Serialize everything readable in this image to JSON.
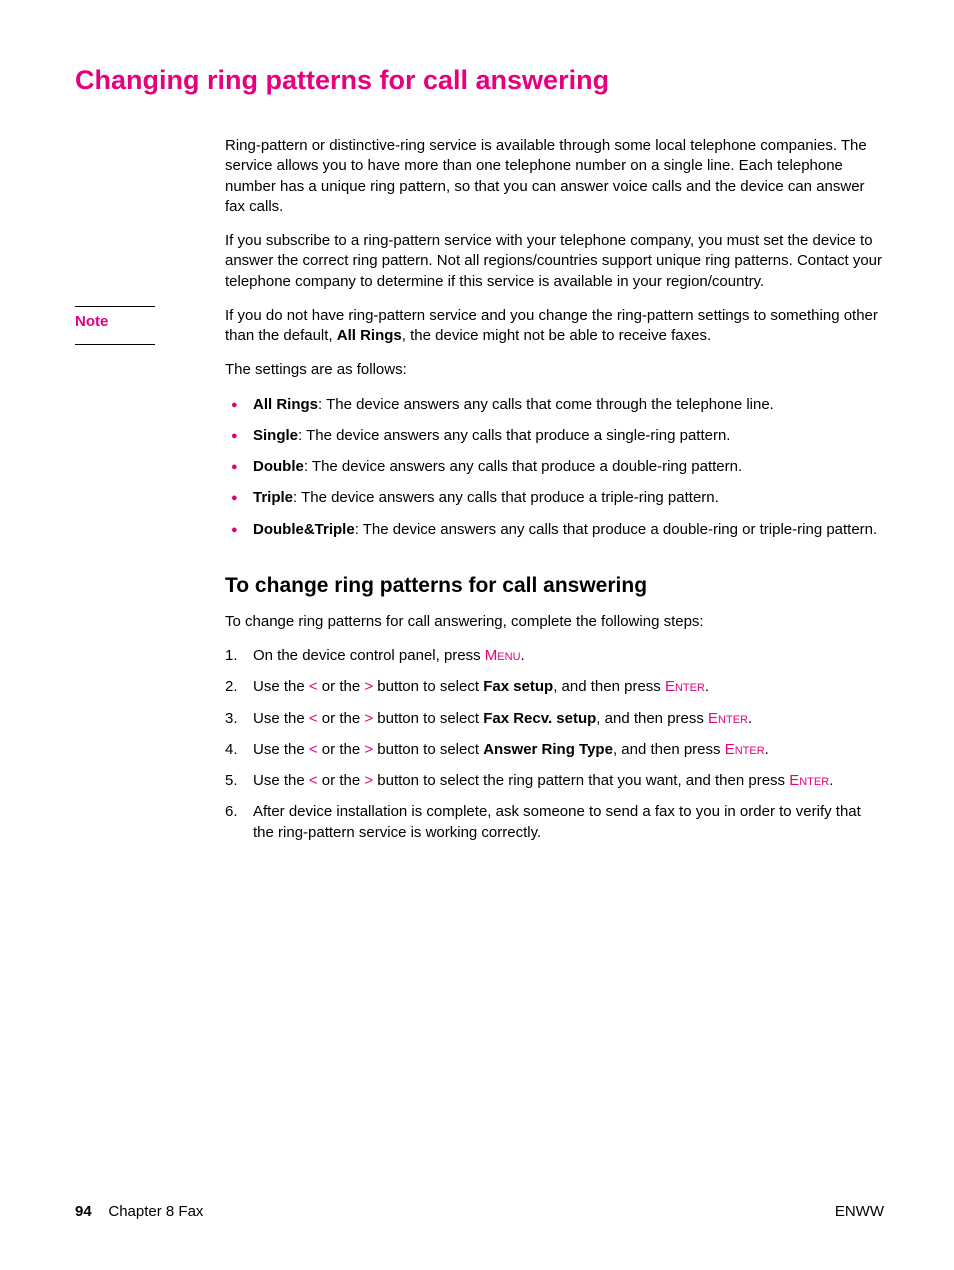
{
  "colors": {
    "accent": "#e6007e",
    "text": "#000000",
    "background": "#ffffff"
  },
  "typography": {
    "body_family": "Arial",
    "body_size_pt": 11,
    "h1_size_pt": 20,
    "h2_size_pt": 16
  },
  "title": "Changing ring patterns for call answering",
  "para1": "Ring-pattern or distinctive-ring service is available through some local telephone companies. The service allows you to have more than one telephone number on a single line. Each telephone number has a unique ring pattern, so that you can answer voice calls and the device can answer fax calls.",
  "para2": "If you subscribe to a ring-pattern service with your telephone company, you must set the device to answer the correct ring pattern. Not all regions/countries support unique ring patterns. Contact your telephone company to determine if this service is available in your region/country.",
  "note": {
    "label": "Note",
    "text_pre": "If you do not have ring-pattern service and you change the ring-pattern settings to something other than the default, ",
    "text_bold": "All Rings",
    "text_post": ", the device might not be able to receive faxes."
  },
  "settings_intro": "The settings are as follows:",
  "bullets": [
    {
      "label": "All Rings",
      "text": ": The device answers any calls that come through the telephone line."
    },
    {
      "label": "Single",
      "text": ": The device answers any calls that produce a single-ring pattern."
    },
    {
      "label": "Double",
      "text": ": The device answers any calls that produce a double-ring pattern."
    },
    {
      "label": "Triple",
      "text": ": The device answers any calls that produce a triple-ring pattern."
    },
    {
      "label": "Double&Triple",
      "text": ": The device answers any calls that produce a double-ring or triple-ring pattern."
    }
  ],
  "subheading": "To change ring patterns for call answering",
  "steps_intro": "To change ring patterns for call answering, complete the following steps:",
  "buttons": {
    "menu": "Menu",
    "enter": "Enter",
    "lt": "<",
    "gt": ">"
  },
  "steps": {
    "s1_pre": "On the device control panel, press ",
    "nav_use": "Use the ",
    "nav_or": " or the ",
    "nav_select": " button to select ",
    "nav_then": ", and then press ",
    "s2_bold": "Fax setup",
    "s3_bold": "Fax Recv. setup",
    "s4_bold": "Answer Ring Type",
    "s5_mid": " button to select the ring pattern that you want, and then press ",
    "s6": "After device installation is complete, ask someone to send a fax to you in order to verify that the ring-pattern service is working correctly."
  },
  "footer": {
    "page_num": "94",
    "chapter": "Chapter 8  Fax",
    "lang": "ENWW"
  }
}
